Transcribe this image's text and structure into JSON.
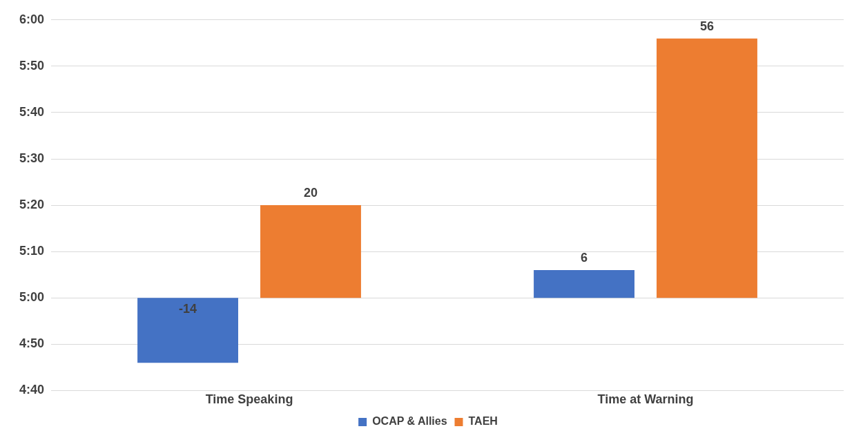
{
  "chart_data": {
    "type": "bar",
    "categories": [
      "Time Speaking",
      "Time at Warning"
    ],
    "series": [
      {
        "name": "OCAP & Allies",
        "color": "#4472c4",
        "values": [
          -14,
          6
        ],
        "base": [
          300,
          300
        ]
      },
      {
        "name": "TAEH",
        "color": "#ed7d31",
        "values": [
          20,
          56
        ],
        "base": [
          300,
          300
        ]
      }
    ],
    "ylim": [
      280,
      360
    ],
    "yticks": [
      {
        "value": 280,
        "label": "4:40"
      },
      {
        "value": 290,
        "label": "4:50"
      },
      {
        "value": 300,
        "label": "5:00"
      },
      {
        "value": 310,
        "label": "5:10"
      },
      {
        "value": 320,
        "label": "5:20"
      },
      {
        "value": 330,
        "label": "5:30"
      },
      {
        "value": 340,
        "label": "5:40"
      },
      {
        "value": 350,
        "label": "5:50"
      },
      {
        "value": 360,
        "label": "6:00"
      }
    ],
    "grid": "y",
    "legend": "bottom",
    "data_labels": true
  }
}
